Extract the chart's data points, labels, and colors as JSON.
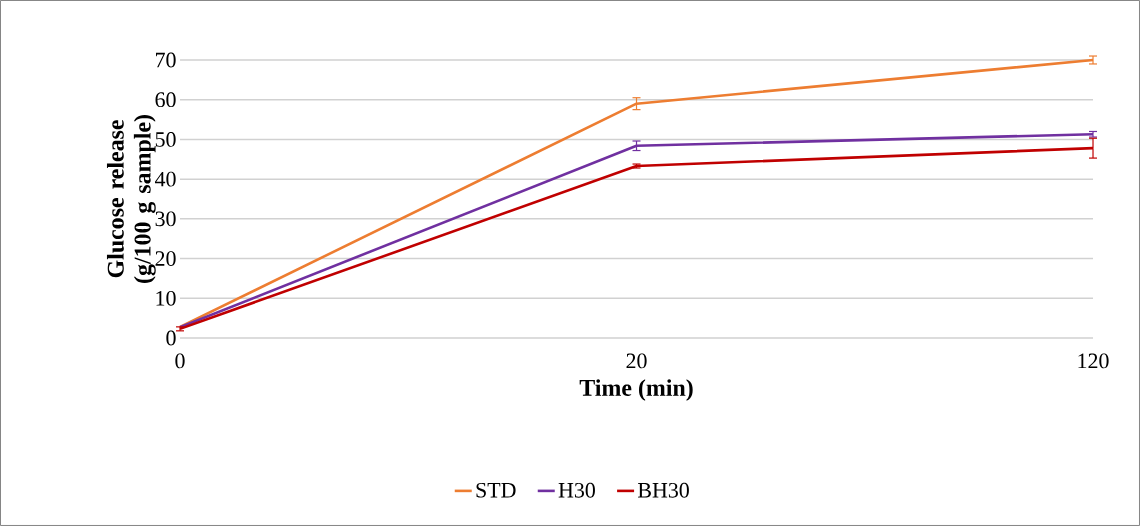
{
  "chart_data": {
    "type": "line",
    "xlabel": "Time (min)",
    "ylabel": "Glucose release (g/100 g sample)",
    "categories": [
      "0",
      "20",
      "120"
    ],
    "series": [
      {
        "name": "STD",
        "color": "#ed7d31",
        "values": [
          2.8,
          59,
          70
        ],
        "errors": [
          null,
          1.5,
          1
        ]
      },
      {
        "name": "H30",
        "color": "#7030a0",
        "values": [
          2.7,
          48.4,
          51.3
        ],
        "errors": [
          null,
          1.2,
          0.7
        ]
      },
      {
        "name": "BH30",
        "color": "#c00000",
        "values": [
          2.3,
          43.3,
          47.8
        ],
        "errors": [
          0.5,
          0.5,
          2.5
        ]
      }
    ],
    "ylim": [
      0,
      70
    ],
    "yticks": [
      0,
      10,
      20,
      30,
      40,
      50,
      60,
      70
    ],
    "grid": "y",
    "legend": "bottom",
    "marker": "none",
    "line_style": "solid"
  }
}
